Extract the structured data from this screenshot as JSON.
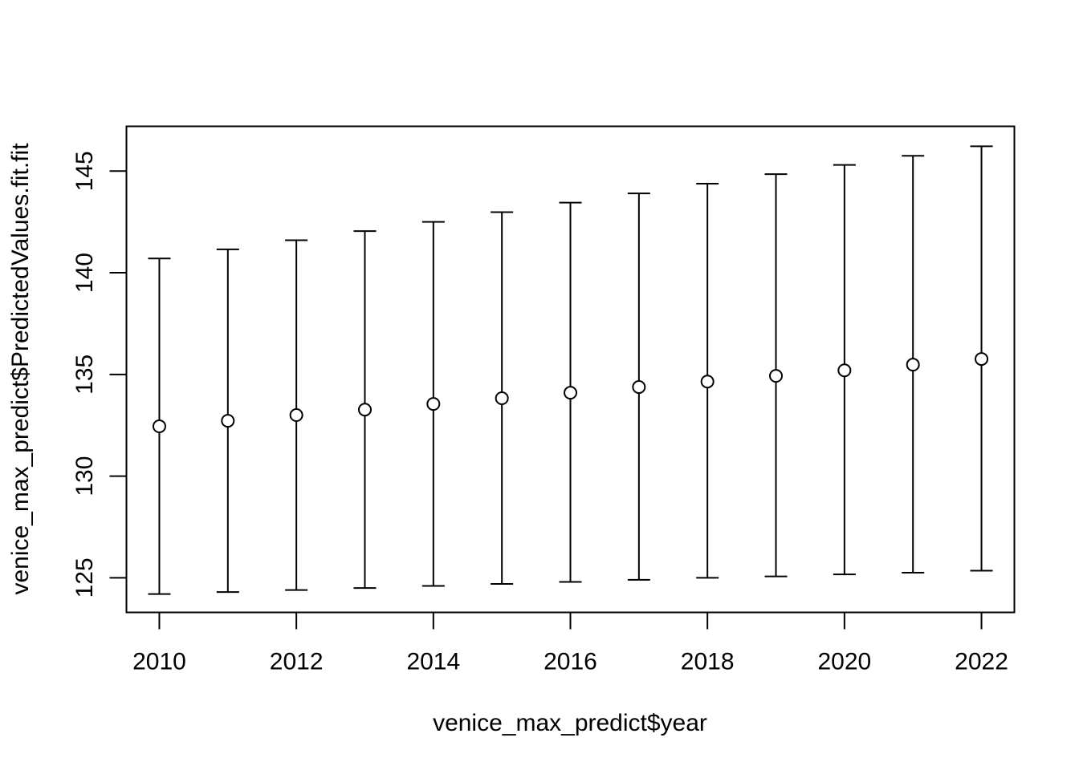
{
  "chart_data": {
    "type": "scatter",
    "title": "",
    "xlabel": "venice_max_predict$year",
    "ylabel": "venice_max_predict$PredictedValues.fit.fit",
    "xlim": [
      2009.52,
      2022.48
    ],
    "ylim": [
      123.3,
      147.2
    ],
    "x_ticks": [
      2010,
      2012,
      2014,
      2016,
      2018,
      2020,
      2022
    ],
    "x_tick_labels": [
      "2010",
      "2012",
      "2014",
      "2016",
      "2018",
      "2020",
      "2022"
    ],
    "y_ticks": [
      125,
      130,
      135,
      140,
      145
    ],
    "y_tick_labels": [
      "125",
      "130",
      "135",
      "140",
      "145"
    ],
    "grid": false,
    "marker": "open-circle",
    "color": "#000000",
    "points": [
      {
        "x": 2010,
        "y": 132.45,
        "lower": 124.2,
        "upper": 140.7
      },
      {
        "x": 2011,
        "y": 132.72,
        "lower": 124.3,
        "upper": 141.15
      },
      {
        "x": 2012,
        "y": 133.0,
        "lower": 124.4,
        "upper": 141.6
      },
      {
        "x": 2013,
        "y": 133.27,
        "lower": 124.5,
        "upper": 142.05
      },
      {
        "x": 2014,
        "y": 133.55,
        "lower": 124.6,
        "upper": 142.5
      },
      {
        "x": 2015,
        "y": 133.83,
        "lower": 124.7,
        "upper": 142.98
      },
      {
        "x": 2016,
        "y": 134.1,
        "lower": 124.8,
        "upper": 143.45
      },
      {
        "x": 2017,
        "y": 134.38,
        "lower": 124.9,
        "upper": 143.9
      },
      {
        "x": 2018,
        "y": 134.65,
        "lower": 125.0,
        "upper": 144.38
      },
      {
        "x": 2019,
        "y": 134.93,
        "lower": 125.07,
        "upper": 144.85
      },
      {
        "x": 2020,
        "y": 135.2,
        "lower": 125.17,
        "upper": 145.3
      },
      {
        "x": 2021,
        "y": 135.48,
        "lower": 125.25,
        "upper": 145.75
      },
      {
        "x": 2022,
        "y": 135.76,
        "lower": 125.35,
        "upper": 146.22
      }
    ]
  }
}
